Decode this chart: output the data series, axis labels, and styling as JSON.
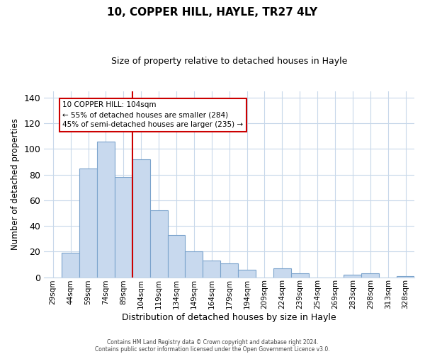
{
  "title": "10, COPPER HILL, HAYLE, TR27 4LY",
  "subtitle": "Size of property relative to detached houses in Hayle",
  "xlabel": "Distribution of detached houses by size in Hayle",
  "ylabel": "Number of detached properties",
  "categories": [
    "29sqm",
    "44sqm",
    "59sqm",
    "74sqm",
    "89sqm",
    "104sqm",
    "119sqm",
    "134sqm",
    "149sqm",
    "164sqm",
    "179sqm",
    "194sqm",
    "209sqm",
    "224sqm",
    "239sqm",
    "254sqm",
    "269sqm",
    "283sqm",
    "298sqm",
    "313sqm",
    "328sqm"
  ],
  "values": [
    0,
    19,
    85,
    106,
    78,
    92,
    52,
    33,
    20,
    13,
    11,
    6,
    0,
    7,
    3,
    0,
    0,
    2,
    3,
    0,
    1
  ],
  "bar_color": "#c8d9ee",
  "bar_edge_color": "#7ba3cc",
  "vline_x_index": 5,
  "vline_color": "#cc0000",
  "annotation_lines": [
    "10 COPPER HILL: 104sqm",
    "← 55% of detached houses are smaller (284)",
    "45% of semi-detached houses are larger (235) →"
  ],
  "annotation_box_color": "#ffffff",
  "annotation_box_edge_color": "#cc0000",
  "ylim": [
    0,
    145
  ],
  "yticks": [
    0,
    20,
    40,
    60,
    80,
    100,
    120,
    140
  ],
  "footer_line1": "Contains HM Land Registry data © Crown copyright and database right 2024.",
  "footer_line2": "Contains public sector information licensed under the Open Government Licence v3.0.",
  "background_color": "#ffffff",
  "grid_color": "#c8d8ea"
}
